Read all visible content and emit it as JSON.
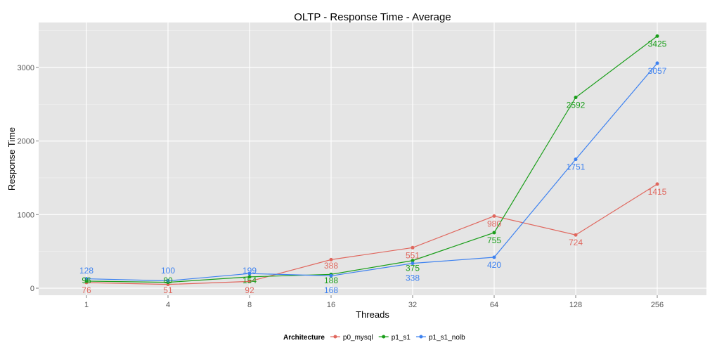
{
  "chart_data": {
    "type": "line",
    "title": "OLTP  - Response Time - Average",
    "xlabel": "Threads",
    "ylabel": "Response Time",
    "categories": [
      "1",
      "4",
      "8",
      "16",
      "32",
      "64",
      "128",
      "256"
    ],
    "yticks": [
      0,
      1000,
      2000,
      3000
    ],
    "ylim": [
      -90,
      3610
    ],
    "grid": true,
    "legend": {
      "title": "Architecture",
      "placement": "bottom"
    },
    "series": [
      {
        "name": "p0_mysql",
        "color": "#E0675E",
        "values": [
          76,
          51,
          92,
          388,
          551,
          980,
          724,
          1415
        ]
      },
      {
        "name": "p1_s1",
        "color": "#1A9E1A",
        "values": [
          96,
          80,
          154,
          188,
          375,
          755,
          2592,
          3425
        ]
      },
      {
        "name": "p1_s1_nolb",
        "color": "#3E82F0",
        "values": [
          128,
          100,
          199,
          168,
          338,
          420,
          1751,
          3057
        ]
      }
    ]
  }
}
